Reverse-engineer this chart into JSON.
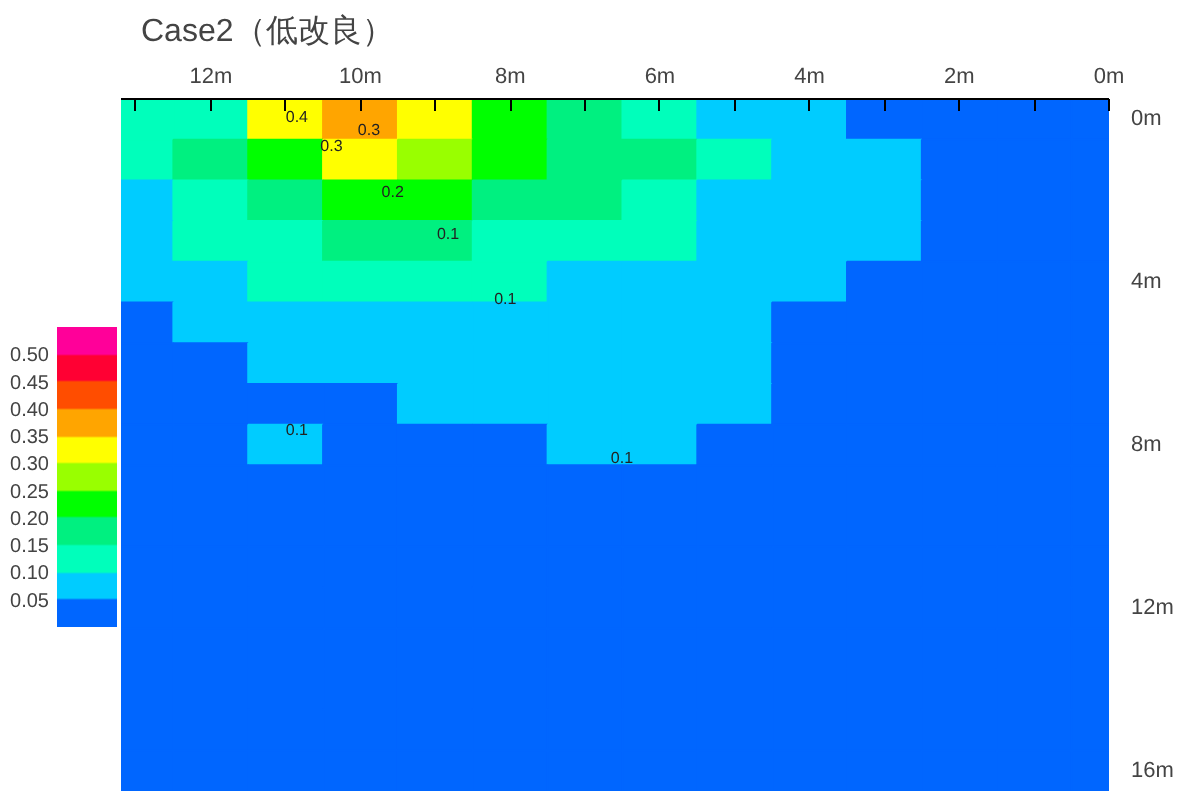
{
  "chart_data": {
    "type": "heatmap",
    "title": "Case2（低改良）",
    "x": [
      13,
      12,
      11,
      10,
      9,
      8,
      7,
      6,
      5,
      4,
      3,
      2,
      1,
      0
    ],
    "xlim": [
      13.2,
      0
    ],
    "xticks": [
      {
        "value": 13,
        "label": null
      },
      {
        "value": 12,
        "label": "12m"
      },
      {
        "value": 11,
        "label": null
      },
      {
        "value": 10,
        "label": "10m"
      },
      {
        "value": 9,
        "label": null
      },
      {
        "value": 8,
        "label": "8m"
      },
      {
        "value": 7,
        "label": null
      },
      {
        "value": 6,
        "label": "6m"
      },
      {
        "value": 5,
        "label": null
      },
      {
        "value": 4,
        "label": "4m"
      },
      {
        "value": 3,
        "label": null
      },
      {
        "value": 2,
        "label": "2m"
      },
      {
        "value": 1,
        "label": null
      },
      {
        "value": 0,
        "label": "0m"
      }
    ],
    "y_categories": [
      "0m",
      null,
      null,
      null,
      "4m",
      null,
      null,
      null,
      "8m",
      null,
      null,
      null,
      "12m",
      null,
      null,
      null,
      "16m"
    ],
    "cells": [
      [
        0.125,
        0.125,
        0.325,
        0.375,
        0.325,
        0.225,
        0.175,
        0.125,
        0.075,
        0.075,
        0.025,
        0.025,
        0.025,
        0.025
      ],
      [
        0.125,
        0.175,
        0.225,
        0.325,
        0.275,
        0.225,
        0.175,
        0.175,
        0.125,
        0.075,
        0.075,
        0.025,
        0.025,
        0.025
      ],
      [
        0.075,
        0.125,
        0.175,
        0.225,
        0.225,
        0.175,
        0.175,
        0.125,
        0.075,
        0.075,
        0.075,
        0.025,
        0.025,
        0.025
      ],
      [
        0.075,
        0.125,
        0.125,
        0.175,
        0.175,
        0.125,
        0.125,
        0.125,
        0.075,
        0.075,
        0.075,
        0.025,
        0.025,
        0.025
      ],
      [
        0.075,
        0.075,
        0.125,
        0.125,
        0.125,
        0.125,
        0.075,
        0.075,
        0.075,
        0.075,
        0.025,
        0.025,
        0.025,
        0.025
      ],
      [
        0.025,
        0.075,
        0.075,
        0.075,
        0.075,
        0.075,
        0.075,
        0.075,
        0.075,
        0.025,
        0.025,
        0.025,
        0.025,
        0.025
      ],
      [
        0.025,
        0.025,
        0.075,
        0.075,
        0.075,
        0.075,
        0.075,
        0.075,
        0.075,
        0.025,
        0.025,
        0.025,
        0.025,
        0.025
      ],
      [
        0.025,
        0.025,
        0.025,
        0.025,
        0.075,
        0.075,
        0.075,
        0.075,
        0.075,
        0.025,
        0.025,
        0.025,
        0.025,
        0.025
      ],
      [
        0.025,
        0.025,
        0.075,
        0.025,
        0.025,
        0.025,
        0.075,
        0.075,
        0.025,
        0.025,
        0.025,
        0.025,
        0.025,
        0.025
      ],
      [
        0.025,
        0.025,
        0.025,
        0.025,
        0.025,
        0.025,
        0.025,
        0.025,
        0.025,
        0.025,
        0.025,
        0.025,
        0.025,
        0.025
      ],
      [
        0.025,
        0.025,
        0.025,
        0.025,
        0.025,
        0.025,
        0.025,
        0.025,
        0.025,
        0.025,
        0.025,
        0.025,
        0.025,
        0.025
      ],
      [
        0.025,
        0.025,
        0.025,
        0.025,
        0.025,
        0.025,
        0.025,
        0.025,
        0.025,
        0.025,
        0.025,
        0.025,
        0.025,
        0.025
      ],
      [
        0.025,
        0.025,
        0.025,
        0.025,
        0.025,
        0.025,
        0.025,
        0.025,
        0.025,
        0.025,
        0.025,
        0.025,
        0.025,
        0.025
      ],
      [
        0.025,
        0.025,
        0.025,
        0.025,
        0.025,
        0.025,
        0.025,
        0.025,
        0.025,
        0.025,
        0.025,
        0.025,
        0.025,
        0.025
      ],
      [
        0.025,
        0.025,
        0.025,
        0.025,
        0.025,
        0.025,
        0.025,
        0.025,
        0.025,
        0.025,
        0.025,
        0.025,
        0.025,
        0.025
      ],
      [
        0.025,
        0.025,
        0.025,
        0.025,
        0.025,
        0.025,
        0.025,
        0.025,
        0.025,
        0.025,
        0.025,
        0.025,
        0.025,
        0.025
      ],
      [
        0.025,
        0.025,
        0.025,
        0.025,
        0.025,
        0.025,
        0.025,
        0.025,
        0.025,
        0.025,
        0.025,
        0.025,
        0.025,
        0.025
      ]
    ],
    "colors": [
      "#0066ff",
      "#00ccff",
      "#00ffbb",
      "#00f080",
      "#00ff00",
      "#99ff00",
      "#ffff00",
      "#ffa500",
      "#ff4d00",
      "#ff0033",
      "#ff0099"
    ],
    "clim": [
      0,
      0.55
    ],
    "cticks": [
      {
        "value": 0.05,
        "label": "0.05"
      },
      {
        "value": 0.1,
        "label": "0.10"
      },
      {
        "value": 0.15,
        "label": "0.15"
      },
      {
        "value": 0.2,
        "label": "0.20"
      },
      {
        "value": 0.25,
        "label": "0.25"
      },
      {
        "value": 0.3,
        "label": "0.30"
      },
      {
        "value": 0.35,
        "label": "0.35"
      },
      {
        "value": 0.4,
        "label": "0.40"
      },
      {
        "value": 0.45,
        "label": "0.45"
      },
      {
        "value": 0.5,
        "label": "0.50"
      }
    ],
    "annotations": [
      "0.4",
      "0.3",
      "0.3",
      "0.2",
      "0.1",
      "0.1",
      "0.1",
      "0.1"
    ]
  }
}
